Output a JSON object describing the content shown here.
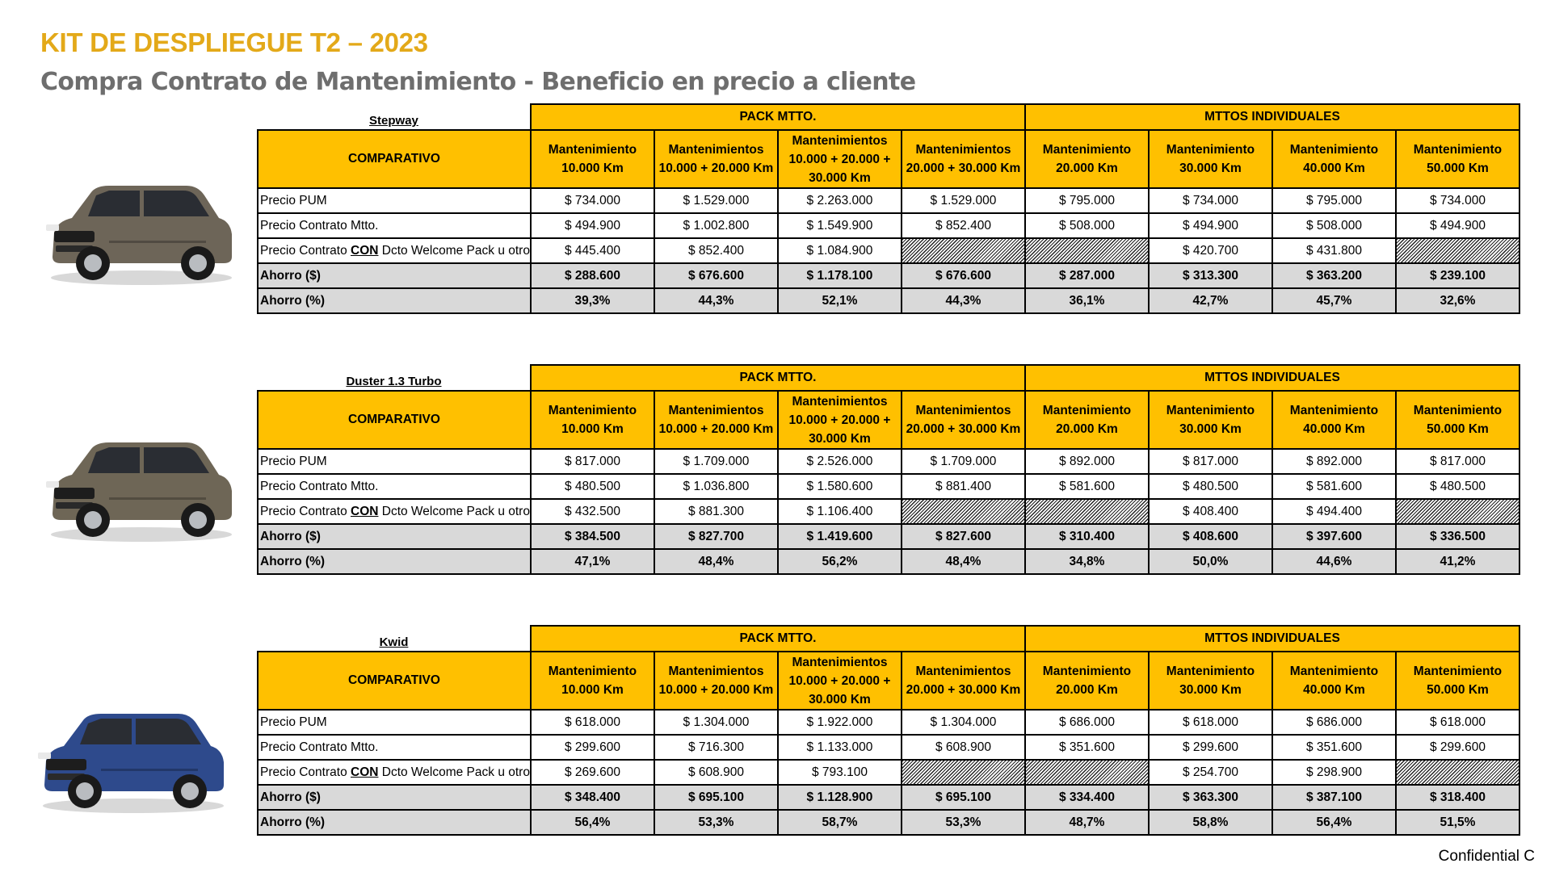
{
  "header": {
    "title": "KIT DE DESPLIEGUE T2 – 2023",
    "subtitle": "Compra Contrato de Mantenimiento - Beneficio en precio a cliente"
  },
  "footer": {
    "confidential": "Confidential C"
  },
  "colors": {
    "accent": "#FFC000",
    "title": "#E3A919",
    "subtitle": "#6E6E6E",
    "highlight_row": "#D9D9D9"
  },
  "groups": {
    "pack": "PACK MTTO.",
    "individual": "MTTOS INDIVIDUALES"
  },
  "comparativo_label": "COMPARATIVO",
  "column_headers": [
    [
      "Mantenimiento",
      "10.000 Km"
    ],
    [
      "Mantenimientos",
      "10.000 + 20.000 Km"
    ],
    [
      "Mantenimientos",
      "10.000 + 20.000 +",
      "30.000 Km"
    ],
    [
      "Mantenimientos",
      "20.000 + 30.000 Km"
    ],
    [
      "Mantenimiento",
      "20.000 Km"
    ],
    [
      "Mantenimiento",
      "30.000 Km"
    ],
    [
      "Mantenimiento",
      "40.000 Km"
    ],
    [
      "Mantenimiento",
      "50.000 Km"
    ]
  ],
  "row_labels": {
    "pum": "Precio PUM",
    "contrato": "Precio Contrato Mtto.",
    "con_prefix": "Precio Contrato ",
    "con_word": "CON",
    "con_suffix": " Dcto Welcome Pack u otro",
    "ahorro": "Ahorro ($)",
    "ahorro_pct": "Ahorro (%)"
  },
  "vehicles": [
    {
      "model": "Stepway",
      "car_color": "#6D6558",
      "rows": {
        "pum": [
          "$ 734.000",
          "$ 1.529.000",
          "$ 2.263.000",
          "$ 1.529.000",
          "$ 795.000",
          "$ 734.000",
          "$ 795.000",
          "$ 734.000"
        ],
        "contrato": [
          "$ 494.900",
          "$ 1.002.800",
          "$ 1.549.900",
          "$ 852.400",
          "$ 508.000",
          "$ 494.900",
          "$ 508.000",
          "$ 494.900"
        ],
        "con": [
          "$ 445.400",
          "$ 852.400",
          "$ 1.084.900",
          "",
          "",
          "$ 420.700",
          "$ 431.800",
          ""
        ],
        "ahorro": [
          "$ 288.600",
          "$ 676.600",
          "$ 1.178.100",
          "$ 676.600",
          "$ 287.000",
          "$ 313.300",
          "$ 363.200",
          "$ 239.100"
        ],
        "ahorro_pct": [
          "39,3%",
          "44,3%",
          "52,1%",
          "44,3%",
          "36,1%",
          "42,7%",
          "45,7%",
          "32,6%"
        ]
      }
    },
    {
      "model": "Duster 1.3 Turbo",
      "car_color": "#6E6656",
      "rows": {
        "pum": [
          "$ 817.000",
          "$ 1.709.000",
          "$ 2.526.000",
          "$ 1.709.000",
          "$ 892.000",
          "$ 817.000",
          "$ 892.000",
          "$ 817.000"
        ],
        "contrato": [
          "$ 480.500",
          "$ 1.036.800",
          "$ 1.580.600",
          "$ 881.400",
          "$ 581.600",
          "$ 480.500",
          "$ 581.600",
          "$ 480.500"
        ],
        "con": [
          "$ 432.500",
          "$ 881.300",
          "$ 1.106.400",
          "",
          "",
          "$ 408.400",
          "$ 494.400",
          ""
        ],
        "ahorro": [
          "$ 384.500",
          "$ 827.700",
          "$ 1.419.600",
          "$ 827.600",
          "$ 310.400",
          "$ 408.600",
          "$ 397.600",
          "$ 336.500"
        ],
        "ahorro_pct": [
          "47,1%",
          "48,4%",
          "56,2%",
          "48,4%",
          "34,8%",
          "50,0%",
          "44,6%",
          "41,2%"
        ]
      }
    },
    {
      "model": "Kwid",
      "car_color": "#2E4A8C",
      "rows": {
        "pum": [
          "$ 618.000",
          "$ 1.304.000",
          "$ 1.922.000",
          "$ 1.304.000",
          "$ 686.000",
          "$ 618.000",
          "$ 686.000",
          "$ 618.000"
        ],
        "contrato": [
          "$ 299.600",
          "$ 716.300",
          "$ 1.133.000",
          "$ 608.900",
          "$ 351.600",
          "$ 299.600",
          "$ 351.600",
          "$ 299.600"
        ],
        "con": [
          "$ 269.600",
          "$ 608.900",
          "$ 793.100",
          "",
          "",
          "$ 254.700",
          "$ 298.900",
          ""
        ],
        "ahorro": [
          "$ 348.400",
          "$ 695.100",
          "$ 1.128.900",
          "$ 695.100",
          "$ 334.400",
          "$ 363.300",
          "$ 387.100",
          "$ 318.400"
        ],
        "ahorro_pct": [
          "56,4%",
          "53,3%",
          "58,7%",
          "53,3%",
          "48,7%",
          "58,8%",
          "56,4%",
          "51,5%"
        ]
      }
    }
  ]
}
